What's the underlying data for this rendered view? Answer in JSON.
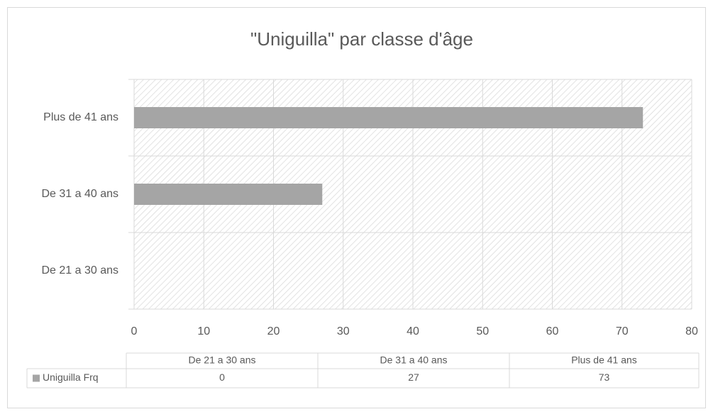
{
  "chart_data": {
    "type": "hbar",
    "title": "\"Uniguilla\" par classe d'âge",
    "categories": [
      "De 21 a 30 ans",
      "De 31 a 40 ans",
      "Plus de 41 ans"
    ],
    "series": [
      {
        "name": "Uniguilla Frq",
        "color": "#a5a5a5",
        "values": [
          0,
          27,
          73
        ]
      }
    ],
    "xlim": [
      0,
      80
    ],
    "xticks": [
      0,
      10,
      20,
      30,
      40,
      50,
      60,
      70,
      80
    ],
    "grid": true,
    "data_table": true
  }
}
